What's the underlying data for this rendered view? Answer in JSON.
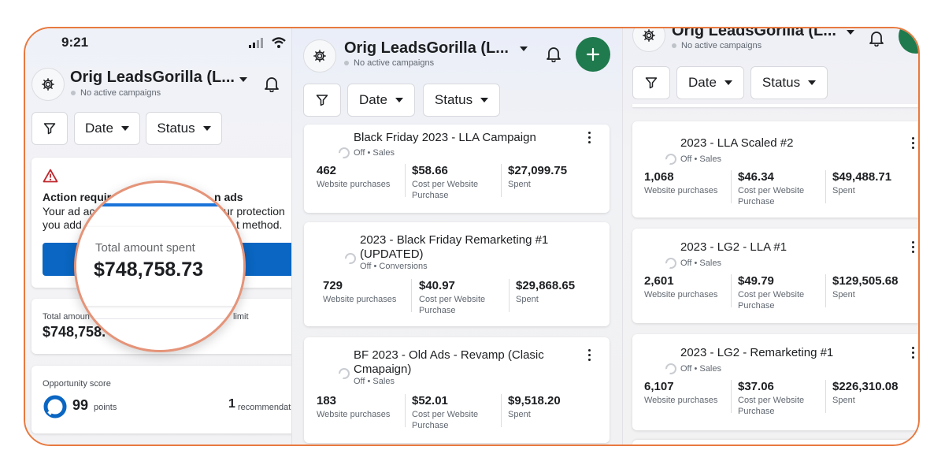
{
  "statusbar": {
    "time": "9:21"
  },
  "account": {
    "name": "Orig LeadsGorilla (L...",
    "subtitle": "No active campaigns"
  },
  "filters": {
    "date": "Date",
    "status": "Status"
  },
  "alert": {
    "title_left": "Action requir",
    "title_right": "n ads",
    "line1_left": "Your ad acc",
    "line1_right": "ur protection",
    "line2_left": "you add",
    "line2_right": "t method."
  },
  "spend_card": {
    "label_left": "Total amoun",
    "label_right": "limit",
    "value": "$748,758."
  },
  "magnifier": {
    "label": "Total amount spent",
    "value": "$748,758.73"
  },
  "opportunity": {
    "label": "Opportunity score",
    "score": "99",
    "score_unit": "points",
    "recs": "1",
    "recs_label": "recommendat"
  },
  "panel2_campaigns": [
    {
      "title": "Black Friday 2023 - LLA Campaign",
      "status": "Off • Sales",
      "metrics": [
        {
          "value": "462",
          "label": "Website purchases"
        },
        {
          "value": "$58.66",
          "label": "Cost per Website Purchase"
        },
        {
          "value": "$27,099.75",
          "label": "Spent"
        }
      ]
    },
    {
      "title": "2023 - Black Friday Remarketing #1 (UPDATED)",
      "status": "Off • Conversions",
      "metrics": [
        {
          "value": "729",
          "label": "Website purchases"
        },
        {
          "value": "$40.97",
          "label": "Cost per Website Purchase"
        },
        {
          "value": "$29,868.65",
          "label": "Spent"
        }
      ]
    },
    {
      "title": "BF 2023 - Old Ads - Revamp (Clasic Cmapaign)",
      "status": "Off • Sales",
      "metrics": [
        {
          "value": "183",
          "label": "Website purchases"
        },
        {
          "value": "$52.01",
          "label": "Cost per Website Purchase"
        },
        {
          "value": "$9,518.20",
          "label": "Spent"
        }
      ]
    }
  ],
  "panel3_campaigns": [
    {
      "title": "2023 - LLA Scaled #2",
      "status": "Off • Sales",
      "metrics": [
        {
          "value": "1,068",
          "label": "Website purchases"
        },
        {
          "value": "$46.34",
          "label": "Cost per Website Purchase"
        },
        {
          "value": "$49,488.71",
          "label": "Spent"
        }
      ]
    },
    {
      "title": "2023 - LG2 - LLA #1",
      "status": "Off • Sales",
      "metrics": [
        {
          "value": "2,601",
          "label": "Website purchases"
        },
        {
          "value": "$49.79",
          "label": "Cost per Website Purchase"
        },
        {
          "value": "$129,505.68",
          "label": "Spent"
        }
      ]
    },
    {
      "title": "2023 - LG2 - Remarketing #1",
      "status": "Off • Sales",
      "metrics": [
        {
          "value": "6,107",
          "label": "Website purchases"
        },
        {
          "value": "$37.06",
          "label": "Cost per Website Purchase"
        },
        {
          "value": "$226,310.08",
          "label": "Spent"
        }
      ]
    }
  ],
  "colors": {
    "accent_orange": "#e8793f",
    "create_green": "#1f7a4d",
    "link_blue": "#0a66c2",
    "warning_red": "#c0272d"
  },
  "icons": [
    "gear-icon",
    "bell-icon",
    "filter-icon",
    "plus-icon",
    "warning-icon",
    "signal-icon",
    "wifi-icon",
    "battery-icon",
    "kebab-icon"
  ]
}
